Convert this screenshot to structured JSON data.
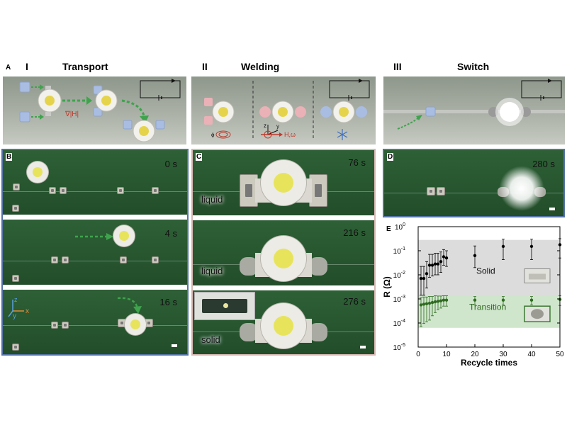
{
  "panels": {
    "A": {
      "letter": "A",
      "sections": [
        {
          "numeral": "I",
          "title": "Transport",
          "gradient_label": "∇|H|"
        },
        {
          "numeral": "II",
          "title": "Welding",
          "field_label": "H,ω",
          "axis_z": "z",
          "axis_y": "y"
        },
        {
          "numeral": "III",
          "title": "Switch"
        }
      ]
    },
    "B": {
      "letter": "B",
      "times": [
        "0 s",
        "4 s",
        "16 s"
      ],
      "axis_z": "z",
      "axis_x": "x",
      "axis_y": "y"
    },
    "C": {
      "letter": "C",
      "times": [
        "76 s",
        "216 s",
        "276 s"
      ],
      "states": [
        "liquid",
        "liquid",
        "solid"
      ]
    },
    "D": {
      "letter": "D",
      "time": "280 s"
    },
    "E": {
      "letter": "E"
    }
  },
  "chart_data": {
    "type": "scatter",
    "xlabel": "Recycle times",
    "ylabel": "R (Ω)",
    "xlim": [
      0,
      50
    ],
    "ylim_log10": [
      -5,
      0
    ],
    "y_scale": "log",
    "xticks": [
      0,
      10,
      20,
      30,
      40,
      50
    ],
    "yticks": [
      {
        "label": "10",
        "exp": "0",
        "v": 0
      },
      {
        "label": "10",
        "exp": "-1",
        "v": -1
      },
      {
        "label": "10",
        "exp": "-2",
        "v": -2
      },
      {
        "label": "10",
        "exp": "-3",
        "v": -3
      },
      {
        "label": "10",
        "exp": "-4",
        "v": -4
      },
      {
        "label": "10",
        "exp": "-5",
        "v": -5
      }
    ],
    "regions": [
      {
        "name": "Solid",
        "label": "Solid",
        "ymin_log10": -2.95,
        "ymax_log10": -0.55,
        "color": "#dcdcdc"
      },
      {
        "name": "Transition",
        "label": "Transition",
        "ymin_log10": -4.2,
        "ymax_log10": -2.85,
        "color": "#cfe6cc"
      }
    ],
    "series": [
      {
        "name": "Solid",
        "color": "#000000",
        "x": [
          1,
          2,
          3,
          4,
          5,
          6,
          7,
          8,
          9,
          10,
          20,
          30,
          40,
          50
        ],
        "y_log10": [
          -2.15,
          -2.15,
          -1.95,
          -1.6,
          -1.6,
          -1.55,
          -1.55,
          -1.45,
          -1.25,
          -1.3,
          -1.2,
          -0.82,
          -0.82,
          -0.75
        ],
        "err_low": [
          0.7,
          0.7,
          0.6,
          0.5,
          0.45,
          0.45,
          0.45,
          0.45,
          0.35,
          0.35,
          0.5,
          0.55,
          0.55,
          0.55
        ],
        "err_high": [
          0.5,
          0.5,
          0.5,
          0.45,
          0.45,
          0.45,
          0.45,
          0.4,
          0.3,
          0.3,
          0.4,
          0.3,
          0.3,
          0.25
        ]
      },
      {
        "name": "Transition",
        "color": "#2f6b1f",
        "x": [
          1,
          2,
          3,
          4,
          5,
          6,
          7,
          8,
          9,
          10,
          20,
          30,
          40,
          50
        ],
        "y_log10": [
          -3.25,
          -3.22,
          -3.2,
          -3.18,
          -3.15,
          -3.12,
          -3.1,
          -3.08,
          -3.05,
          -3.05,
          -3.05,
          -3.05,
          -3.05,
          -3.02
        ],
        "err_low": [
          0.9,
          0.8,
          0.75,
          0.7,
          0.55,
          0.45,
          0.35,
          0.3,
          0.25,
          0.25,
          0.2,
          0.2,
          0.2,
          0.25
        ],
        "err_high": [
          0.3,
          0.3,
          0.28,
          0.28,
          0.25,
          0.25,
          0.22,
          0.2,
          0.18,
          0.18,
          0.15,
          0.15,
          0.15,
          0.15
        ]
      }
    ]
  }
}
